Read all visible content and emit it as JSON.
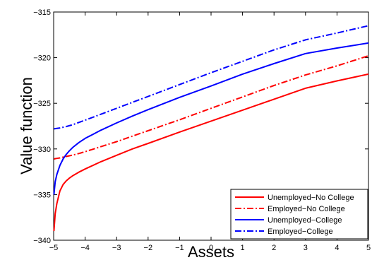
{
  "chart_data": {
    "type": "line",
    "xlabel": "Assets",
    "ylabel": "Value function",
    "xlim": [
      -5,
      5
    ],
    "ylim": [
      -340,
      -315
    ],
    "xticks": [
      -5,
      -4,
      -3,
      -2,
      -1,
      0,
      1,
      2,
      3,
      4,
      5
    ],
    "yticks": [
      -340,
      -335,
      -330,
      -325,
      -320,
      -315
    ],
    "xtick_labels": [
      "−5",
      "−4",
      "−3",
      "−2",
      "−1",
      "0",
      "1",
      "2",
      "3",
      "4",
      "5"
    ],
    "ytick_labels": [
      "−340",
      "−335",
      "−330",
      "−325",
      "−320",
      "−315"
    ],
    "grid": false,
    "legend_position": "bottom-right",
    "x": [
      -4.99,
      -4.95,
      -4.9,
      -4.8,
      -4.7,
      -4.6,
      -4.5,
      -4.4,
      -4.2,
      -4.0,
      -3.5,
      -3.0,
      -2.5,
      -2.0,
      -1.0,
      0.0,
      1.0,
      2.0,
      3.0,
      4.0,
      5.0
    ],
    "series": [
      {
        "name": "Unemployed−No College",
        "color": "#ff0000",
        "style": "solid",
        "values": [
          -339.0,
          -337.1,
          -336.0,
          -334.6,
          -333.9,
          -333.5,
          -333.2,
          -332.95,
          -332.55,
          -332.2,
          -331.4,
          -330.7,
          -330.0,
          -329.4,
          -328.15,
          -326.95,
          -325.75,
          -324.55,
          -323.35,
          -322.55,
          -321.8
        ]
      },
      {
        "name": "Employed−No College",
        "color": "#ff0000",
        "style": "dashdot",
        "values": [
          -331.1,
          -331.07,
          -331.04,
          -330.98,
          -330.9,
          -330.83,
          -330.75,
          -330.68,
          -330.5,
          -330.3,
          -329.75,
          -329.2,
          -328.6,
          -328.0,
          -326.8,
          -325.55,
          -324.3,
          -323.05,
          -321.9,
          -320.9,
          -319.8
        ]
      },
      {
        "name": "Unemployed−College",
        "color": "#0000ff",
        "style": "solid",
        "values": [
          -335.0,
          -333.6,
          -332.8,
          -331.8,
          -331.1,
          -330.6,
          -330.2,
          -329.85,
          -329.3,
          -328.85,
          -327.95,
          -327.15,
          -326.4,
          -325.7,
          -324.35,
          -323.1,
          -321.8,
          -320.65,
          -319.55,
          -318.95,
          -318.4
        ]
      },
      {
        "name": "Employed−College",
        "color": "#0000ff",
        "style": "dashdot",
        "values": [
          -327.8,
          -327.78,
          -327.75,
          -327.7,
          -327.62,
          -327.55,
          -327.45,
          -327.35,
          -327.1,
          -326.85,
          -326.2,
          -325.55,
          -324.9,
          -324.25,
          -322.95,
          -321.65,
          -320.4,
          -319.15,
          -318.05,
          -317.3,
          -316.5
        ]
      }
    ]
  }
}
